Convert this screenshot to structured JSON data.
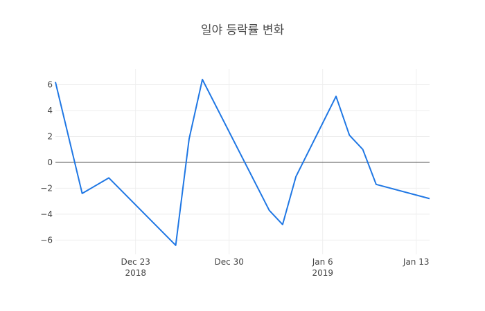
{
  "chart_data": {
    "type": "line",
    "title": "일야 등락률 변화",
    "xlabel": "",
    "ylabel": "",
    "x": [
      "2018-12-17",
      "2018-12-19",
      "2018-12-21",
      "2018-12-26",
      "2018-12-27",
      "2018-12-28",
      "2019-01-02",
      "2019-01-03",
      "2019-01-04",
      "2019-01-07",
      "2019-01-08",
      "2019-01-09",
      "2019-01-10",
      "2019-01-14"
    ],
    "series": [
      {
        "values": [
          6.2,
          -2.4,
          -1.2,
          -6.4,
          1.8,
          6.4,
          -3.7,
          -4.8,
          -1.1,
          5.1,
          2.1,
          1.0,
          -1.7,
          -2.8
        ]
      }
    ],
    "xlim": [
      "2018-12-17",
      "2019-01-14"
    ],
    "ylim": [
      -7.1,
      7.2
    ],
    "y_ticks": [
      -6,
      -4,
      -2,
      0,
      2,
      4,
      6
    ],
    "y_tick_labels": [
      "−6",
      "−4",
      "−2",
      "0",
      "2",
      "4",
      "6"
    ],
    "x_ticks": [
      {
        "date": "2018-12-23",
        "label": "Dec 23",
        "year": "2018"
      },
      {
        "date": "2018-12-30",
        "label": "Dec 30",
        "year": ""
      },
      {
        "date": "2019-01-06",
        "label": "Jan 6",
        "year": "2019"
      },
      {
        "date": "2019-01-13",
        "label": "Jan 13",
        "year": ""
      }
    ],
    "grid": true,
    "legend": "none",
    "colors": {
      "line": "#1f77e4",
      "grid": "#eeeeee",
      "zero_line": "#444444",
      "text": "#444444"
    }
  }
}
